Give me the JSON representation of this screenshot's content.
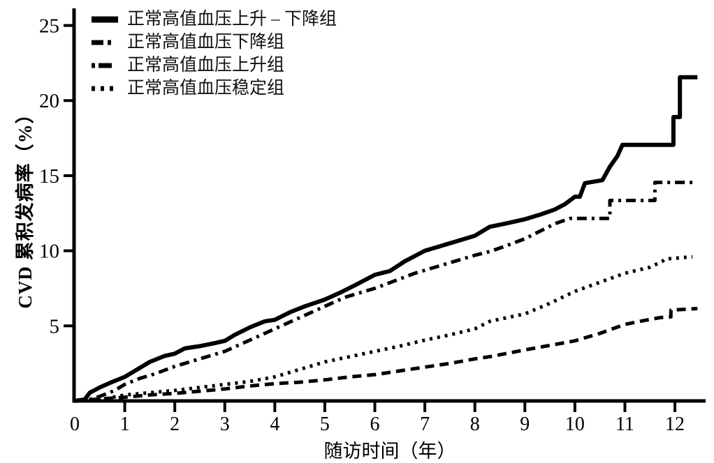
{
  "figure": {
    "background": "#ffffff",
    "ink_color": "#000000"
  },
  "chart_data": {
    "type": "line",
    "title": "",
    "xlabel": "随访时间（年）",
    "ylabel": "CVD 累积发病率（%）",
    "xlim": [
      0,
      12.6
    ],
    "ylim": [
      0,
      26
    ],
    "xticks": [
      0,
      1,
      2,
      3,
      4,
      5,
      6,
      7,
      8,
      9,
      10,
      11,
      12
    ],
    "yticks": [
      5,
      10,
      15,
      20,
      25
    ],
    "grid": false,
    "legend_position": "top-left-inside",
    "series": [
      {
        "name": "正常高值血压上升 – 下降组",
        "line_style": "solid",
        "points": [
          [
            0,
            0
          ],
          [
            0.2,
            0.1
          ],
          [
            0.3,
            0.55
          ],
          [
            0.5,
            0.9
          ],
          [
            0.7,
            1.2
          ],
          [
            1,
            1.6
          ],
          [
            1.2,
            2
          ],
          [
            1.5,
            2.6
          ],
          [
            1.8,
            3
          ],
          [
            2,
            3.15
          ],
          [
            2.2,
            3.5
          ],
          [
            2.5,
            3.65
          ],
          [
            2.8,
            3.85
          ],
          [
            3,
            4
          ],
          [
            3.2,
            4.4
          ],
          [
            3.5,
            4.9
          ],
          [
            3.8,
            5.3
          ],
          [
            4,
            5.4
          ],
          [
            4.3,
            5.9
          ],
          [
            4.6,
            6.3
          ],
          [
            5,
            6.75
          ],
          [
            5.3,
            7.2
          ],
          [
            5.6,
            7.7
          ],
          [
            6,
            8.4
          ],
          [
            6.3,
            8.65
          ],
          [
            6.6,
            9.3
          ],
          [
            7,
            10
          ],
          [
            7.3,
            10.3
          ],
          [
            7.6,
            10.6
          ],
          [
            8,
            11
          ],
          [
            8.3,
            11.6
          ],
          [
            8.6,
            11.8
          ],
          [
            9,
            12.1
          ],
          [
            9.3,
            12.4
          ],
          [
            9.6,
            12.75
          ],
          [
            9.8,
            13.1
          ],
          [
            10,
            13.6
          ],
          [
            10.1,
            13.6
          ],
          [
            10.2,
            14.5
          ],
          [
            10.55,
            14.7
          ],
          [
            10.7,
            15.6
          ],
          [
            10.85,
            16.3
          ],
          [
            10.95,
            17.05
          ],
          [
            11.97,
            17.05
          ],
          [
            11.97,
            18.9
          ],
          [
            12.1,
            18.9
          ],
          [
            12.1,
            21.55
          ],
          [
            12.45,
            21.55
          ]
        ]
      },
      {
        "name": "正常高值血压下降组",
        "line_style": "dashed",
        "points": [
          [
            0,
            0
          ],
          [
            0.4,
            0.1
          ],
          [
            1,
            0.25
          ],
          [
            1.5,
            0.4
          ],
          [
            2,
            0.5
          ],
          [
            2.5,
            0.65
          ],
          [
            3,
            0.8
          ],
          [
            3.5,
            1
          ],
          [
            4,
            1.15
          ],
          [
            4.5,
            1.25
          ],
          [
            5,
            1.4
          ],
          [
            5.5,
            1.6
          ],
          [
            6,
            1.75
          ],
          [
            6.5,
            2
          ],
          [
            7,
            2.25
          ],
          [
            7.5,
            2.5
          ],
          [
            8,
            2.8
          ],
          [
            8.3,
            2.95
          ],
          [
            9,
            3.4
          ],
          [
            9.5,
            3.7
          ],
          [
            10,
            4
          ],
          [
            10.5,
            4.5
          ],
          [
            11,
            5.1
          ],
          [
            11.3,
            5.3
          ],
          [
            11.7,
            5.55
          ],
          [
            11.92,
            5.6
          ],
          [
            11.92,
            6.05
          ],
          [
            12.2,
            6.1
          ],
          [
            12.45,
            6.15
          ]
        ]
      },
      {
        "name": "正常高值血压上升组",
        "line_style": "dash-dot",
        "points": [
          [
            0,
            0
          ],
          [
            0.3,
            0.1
          ],
          [
            0.5,
            0.3
          ],
          [
            0.8,
            0.7
          ],
          [
            1,
            1.1
          ],
          [
            1.3,
            1.5
          ],
          [
            1.6,
            1.8
          ],
          [
            2,
            2.3
          ],
          [
            2.4,
            2.7
          ],
          [
            2.8,
            3.1
          ],
          [
            3,
            3.3
          ],
          [
            3.4,
            3.9
          ],
          [
            3.8,
            4.5
          ],
          [
            4,
            4.8
          ],
          [
            4.4,
            5.4
          ],
          [
            4.8,
            6
          ],
          [
            5,
            6.3
          ],
          [
            5.4,
            6.9
          ],
          [
            5.8,
            7.3
          ],
          [
            6,
            7.5
          ],
          [
            6.4,
            8
          ],
          [
            6.8,
            8.5
          ],
          [
            7,
            8.7
          ],
          [
            7.4,
            9.1
          ],
          [
            7.8,
            9.5
          ],
          [
            8,
            9.7
          ],
          [
            8.3,
            9.95
          ],
          [
            8.6,
            10.3
          ],
          [
            9,
            10.8
          ],
          [
            9.3,
            11.3
          ],
          [
            9.6,
            11.8
          ],
          [
            9.9,
            12.15
          ],
          [
            10.7,
            12.15
          ],
          [
            10.7,
            13.35
          ],
          [
            11.6,
            13.35
          ],
          [
            11.6,
            14.55
          ],
          [
            12.4,
            14.55
          ]
        ]
      },
      {
        "name": "正常高值血压稳定组",
        "line_style": "dotted",
        "points": [
          [
            0,
            0
          ],
          [
            0.3,
            0.05
          ],
          [
            0.6,
            0.15
          ],
          [
            1,
            0.4
          ],
          [
            1.5,
            0.55
          ],
          [
            2,
            0.7
          ],
          [
            2.5,
            0.9
          ],
          [
            3,
            1.1
          ],
          [
            3.5,
            1.3
          ],
          [
            4,
            1.6
          ],
          [
            4.5,
            2.1
          ],
          [
            5,
            2.6
          ],
          [
            5.5,
            2.95
          ],
          [
            6,
            3.3
          ],
          [
            6.5,
            3.65
          ],
          [
            7,
            4.05
          ],
          [
            7.5,
            4.4
          ],
          [
            8,
            4.8
          ],
          [
            8.3,
            5.3
          ],
          [
            9,
            5.8
          ],
          [
            9.5,
            6.5
          ],
          [
            10,
            7.3
          ],
          [
            10.5,
            7.9
          ],
          [
            11,
            8.5
          ],
          [
            11.5,
            8.9
          ],
          [
            11.75,
            9.3
          ],
          [
            11.8,
            9.45
          ],
          [
            12,
            9.5
          ],
          [
            12.35,
            9.6
          ]
        ]
      }
    ]
  }
}
